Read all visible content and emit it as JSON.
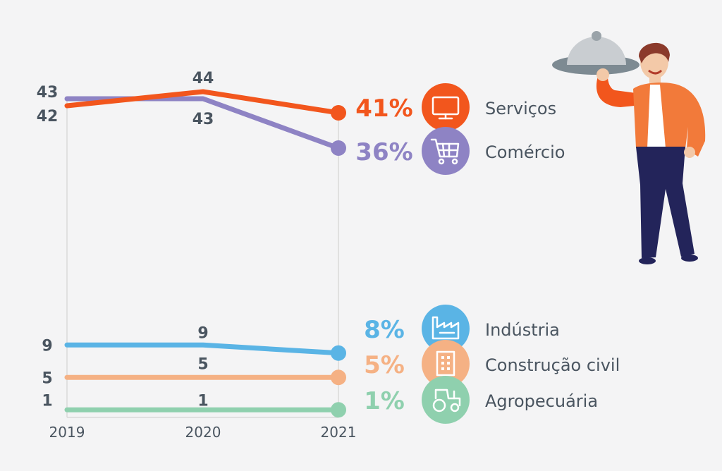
{
  "chart_data": {
    "type": "line",
    "x": [
      "2019",
      "2020",
      "2021"
    ],
    "series": [
      {
        "name": "Serviços",
        "values": [
          42,
          44,
          41
        ],
        "end_label": "41%",
        "color": "#f2561d",
        "icon": "monitor-icon"
      },
      {
        "name": "Comércio",
        "values": [
          43,
          43,
          36
        ],
        "end_label": "36%",
        "color": "#8e83c4",
        "icon": "shopping-cart-icon"
      },
      {
        "name": "Indústria",
        "values": [
          9,
          9,
          8
        ],
        "end_label": "8%",
        "color": "#5ab4e5",
        "icon": "factory-icon"
      },
      {
        "name": "Construção civil",
        "values": [
          5,
          5,
          5
        ],
        "end_label": "5%",
        "color": "#f5b184",
        "icon": "building-icon"
      },
      {
        "name": "Agropecuária",
        "values": [
          1,
          1,
          1
        ],
        "end_label": "1%",
        "color": "#8fd0ae",
        "icon": "tractor-icon"
      }
    ],
    "value_labels": [
      {
        "text": "43",
        "series": 1,
        "point": 0
      },
      {
        "text": "42",
        "series": 0,
        "point": 0
      },
      {
        "text": "44",
        "series": 0,
        "point": 1
      },
      {
        "text": "43",
        "series": 1,
        "point": 1
      },
      {
        "text": "9",
        "series": 2,
        "point": 0
      },
      {
        "text": "9",
        "series": 2,
        "point": 1
      },
      {
        "text": "5",
        "series": 3,
        "point": 0
      },
      {
        "text": "5",
        "series": 3,
        "point": 1
      },
      {
        "text": "1",
        "series": 4,
        "point": 0
      },
      {
        "text": "1",
        "series": 4,
        "point": 1
      }
    ],
    "grid": false,
    "legend": "right",
    "illustration": "waiter-with-cloche"
  }
}
